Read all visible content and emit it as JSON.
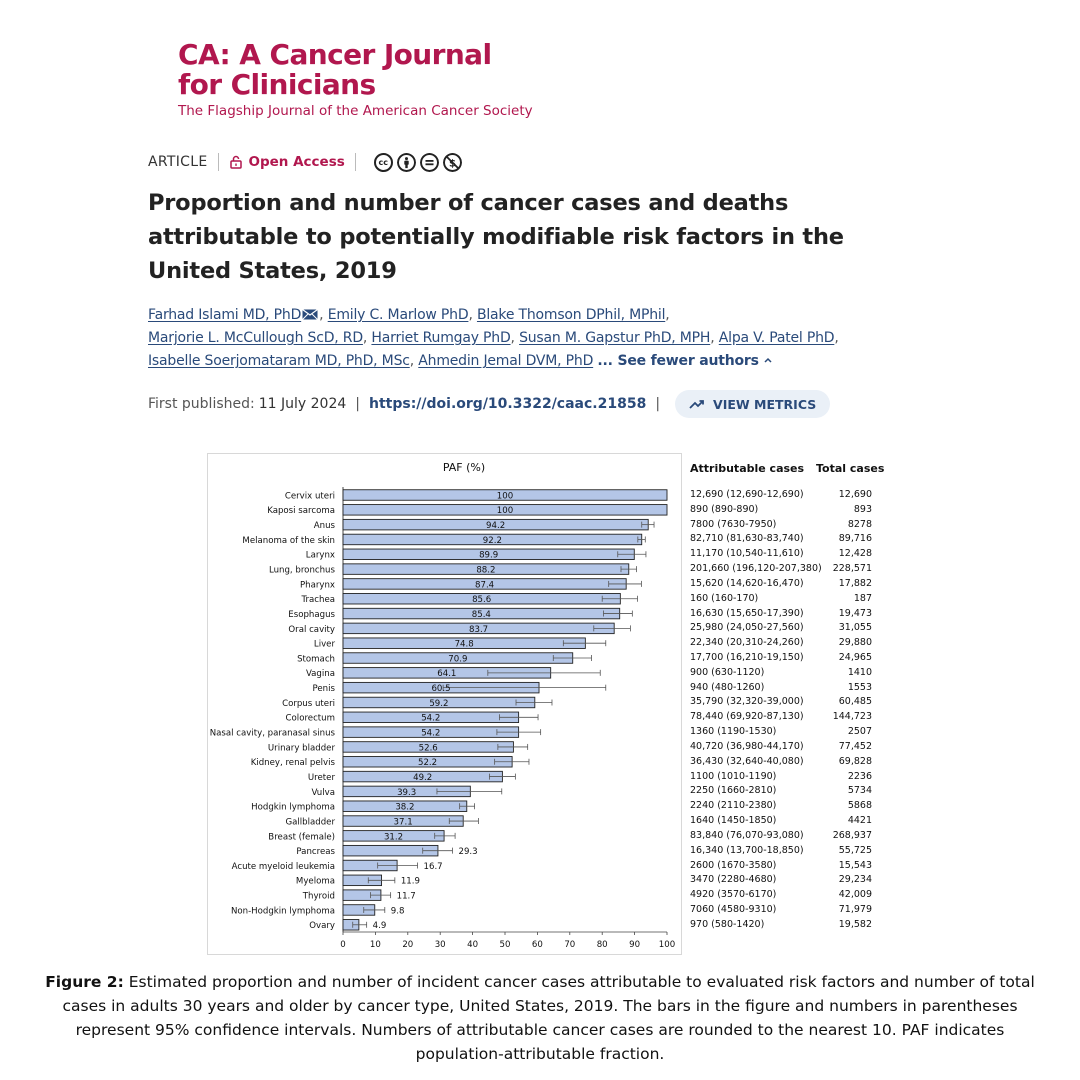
{
  "journal": {
    "title_line1": "CA: A Cancer Journal",
    "title_line2": "for Clinicians",
    "subtitle": "The Flagship Journal of the American Cancer Society"
  },
  "article": {
    "type_label": "ARTICLE",
    "open_access": "Open Access",
    "title": "Proportion and number of cancer cases and deaths attributable to potentially modifiable risk factors in the United States, 2019",
    "authors": [
      "Farhad Islami MD, PhD",
      "Emily C. Marlow PhD",
      "Blake Thomson DPhil, MPhil",
      "Marjorie L. McCullough ScD, RD",
      "Harriet Rumgay PhD",
      "Susan M. Gapstur PhD, MPH",
      "Alpa V. Patel PhD",
      "Isabelle Soerjomataram MD, PhD, MSc",
      "Ahmedin Jemal DVM, PhD"
    ],
    "see_fewer": "... See fewer authors",
    "first_published_label": "First published:",
    "first_published_date": "11 July 2024",
    "doi": "https://doi.org/10.3322/caac.21858",
    "metrics_button": "VIEW METRICS"
  },
  "chart_data": {
    "type": "bar",
    "orientation": "horizontal",
    "title": "PAF (%)",
    "xlim": [
      0,
      100
    ],
    "xticks": [
      0,
      10,
      20,
      30,
      40,
      50,
      60,
      70,
      80,
      90,
      100
    ],
    "bar_color": "#b4c6e7",
    "columns": [
      "Attributable cases",
      "Total cases"
    ],
    "rows": [
      {
        "label": "Cervix uteri",
        "paf": 100,
        "ci": [
          100,
          100
        ],
        "cases": "12,690 (12,690-12,690)",
        "total": "12,690"
      },
      {
        "label": "Kaposi sarcoma",
        "paf": 100,
        "ci": [
          100,
          100
        ],
        "cases": "890 (890-890)",
        "total": "893"
      },
      {
        "label": "Anus",
        "paf": 94.2,
        "ci": [
          92.2,
          96.0
        ],
        "cases": "7800 (7630-7950)",
        "total": "8278"
      },
      {
        "label": "Melanoma of the skin",
        "paf": 92.2,
        "ci": [
          91.0,
          93.3
        ],
        "cases": "82,710 (81,630-83,740)",
        "total": "89,716"
      },
      {
        "label": "Larynx",
        "paf": 89.9,
        "ci": [
          84.8,
          93.5
        ],
        "cases": "11,170 (10,540-11,610)",
        "total": "12,428"
      },
      {
        "label": "Lung, bronchus",
        "paf": 88.2,
        "ci": [
          85.8,
          90.6
        ],
        "cases": "201,660 (196,120-207,380)",
        "total": "228,571"
      },
      {
        "label": "Pharynx",
        "paf": 87.4,
        "ci": [
          82.0,
          92.1
        ],
        "cases": "15,620 (14,620-16,470)",
        "total": "17,882"
      },
      {
        "label": "Trachea",
        "paf": 85.6,
        "ci": [
          80.0,
          90.9
        ],
        "cases": "160 (160-170)",
        "total": "187"
      },
      {
        "label": "Esophagus",
        "paf": 85.4,
        "ci": [
          80.4,
          89.3
        ],
        "cases": "16,630 (15,650-17,390)",
        "total": "19,473"
      },
      {
        "label": "Oral cavity",
        "paf": 83.7,
        "ci": [
          77.4,
          88.7
        ],
        "cases": "25,980 (24,050-27,560)",
        "total": "31,055"
      },
      {
        "label": "Liver",
        "paf": 74.8,
        "ci": [
          68.0,
          81.1
        ],
        "cases": "22,340 (20,310-24,260)",
        "total": "29,880"
      },
      {
        "label": "Stomach",
        "paf": 70.9,
        "ci": [
          64.9,
          76.7
        ],
        "cases": "17,700 (16,210-19,150)",
        "total": "24,965"
      },
      {
        "label": "Vagina",
        "paf": 64.1,
        "ci": [
          44.7,
          79.4
        ],
        "cases": "900 (630-1120)",
        "total": "1410"
      },
      {
        "label": "Penis",
        "paf": 60.5,
        "ci": [
          30.9,
          81.1
        ],
        "cases": "940 (480-1260)",
        "total": "1553"
      },
      {
        "label": "Corpus uteri",
        "paf": 59.2,
        "ci": [
          53.4,
          64.5
        ],
        "cases": "35,790 (32,320-39,000)",
        "total": "60,485"
      },
      {
        "label": "Colorectum",
        "paf": 54.2,
        "ci": [
          48.3,
          60.2
        ],
        "cases": "78,440 (69,920-87,130)",
        "total": "144,723"
      },
      {
        "label": "Nasal cavity, paranasal sinus",
        "paf": 54.2,
        "ci": [
          47.5,
          61.0
        ],
        "cases": "1360 (1190-1530)",
        "total": "2507"
      },
      {
        "label": "Urinary bladder",
        "paf": 52.6,
        "ci": [
          47.8,
          57.0
        ],
        "cases": "40,720 (36,980-44,170)",
        "total": "77,452"
      },
      {
        "label": "Kidney, renal pelvis",
        "paf": 52.2,
        "ci": [
          46.8,
          57.4
        ],
        "cases": "36,430 (32,640-40,080)",
        "total": "69,828"
      },
      {
        "label": "Ureter",
        "paf": 49.2,
        "ci": [
          45.2,
          53.2
        ],
        "cases": "1100 (1010-1190)",
        "total": "2236"
      },
      {
        "label": "Vulva",
        "paf": 39.3,
        "ci": [
          29.0,
          49.0
        ],
        "cases": "2250 (1660-2810)",
        "total": "5734"
      },
      {
        "label": "Hodgkin lymphoma",
        "paf": 38.2,
        "ci": [
          36.0,
          40.6
        ],
        "cases": "2240 (2110-2380)",
        "total": "5868"
      },
      {
        "label": "Gallbladder",
        "paf": 37.1,
        "ci": [
          32.8,
          41.8
        ],
        "cases": "1640 (1450-1850)",
        "total": "4421"
      },
      {
        "label": "Breast (female)",
        "paf": 31.2,
        "ci": [
          28.3,
          34.6
        ],
        "cases": "83,840 (76,070-93,080)",
        "total": "268,937"
      },
      {
        "label": "Pancreas",
        "paf": 29.3,
        "ci": [
          24.6,
          33.8
        ],
        "cases": "16,340 (13,700-18,850)",
        "total": "55,725"
      },
      {
        "label": "Acute myeloid leukemia",
        "paf": 16.7,
        "ci": [
          10.7,
          23.0
        ],
        "cases": "2600 (1670-3580)",
        "total": "15,543"
      },
      {
        "label": "Myeloma",
        "paf": 11.9,
        "ci": [
          7.8,
          16.0
        ],
        "cases": "3470 (2280-4680)",
        "total": "29,234"
      },
      {
        "label": "Thyroid",
        "paf": 11.7,
        "ci": [
          8.5,
          14.7
        ],
        "cases": "4920 (3570-6170)",
        "total": "42,009"
      },
      {
        "label": "Non-Hodgkin lymphoma",
        "paf": 9.8,
        "ci": [
          6.4,
          12.9
        ],
        "cases": "7060 (4580-9310)",
        "total": "71,979"
      },
      {
        "label": "Ovary",
        "paf": 4.9,
        "ci": [
          3.0,
          7.3
        ],
        "cases": "970 (580-1420)",
        "total": "19,582"
      }
    ]
  },
  "caption": {
    "label": "Figure 2:",
    "text": "Estimated proportion and number of incident cancer cases attributable to evaluated risk factors and number of total cases in adults 30 years and older by cancer type, United States, 2019. The bars in the figure and numbers in parentheses represent 95% confidence intervals. Numbers of attributable cancer cases are rounded to the nearest 10. PAF indicates population-attributable fraction."
  }
}
